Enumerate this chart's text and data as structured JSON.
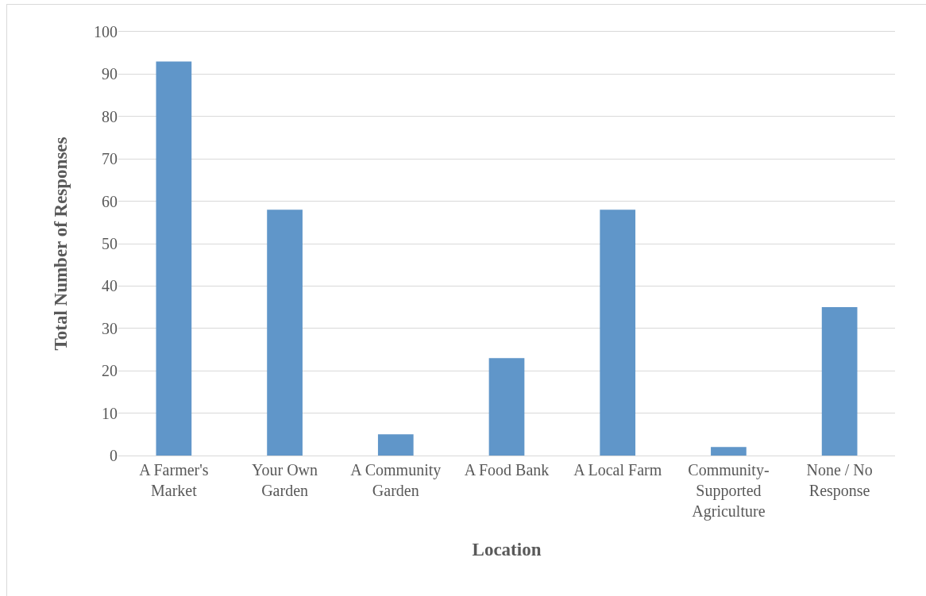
{
  "chart_data": {
    "type": "bar",
    "xlabel": "Location",
    "ylabel": "Total Number of Responses",
    "categories": [
      "A Farmer's\nMarket",
      "Your Own\nGarden",
      "A Community\nGarden",
      "A Food Bank",
      "A Local Farm",
      "Community-\nSupported\nAgriculture",
      "None / No\nResponse"
    ],
    "values": [
      93,
      58,
      5,
      23,
      58,
      2,
      35
    ],
    "color": "#6096c9",
    "ylim": [
      0,
      100
    ],
    "yticks": [
      0,
      10,
      20,
      30,
      40,
      50,
      60,
      70,
      80,
      90,
      100
    ],
    "grid": "y"
  }
}
